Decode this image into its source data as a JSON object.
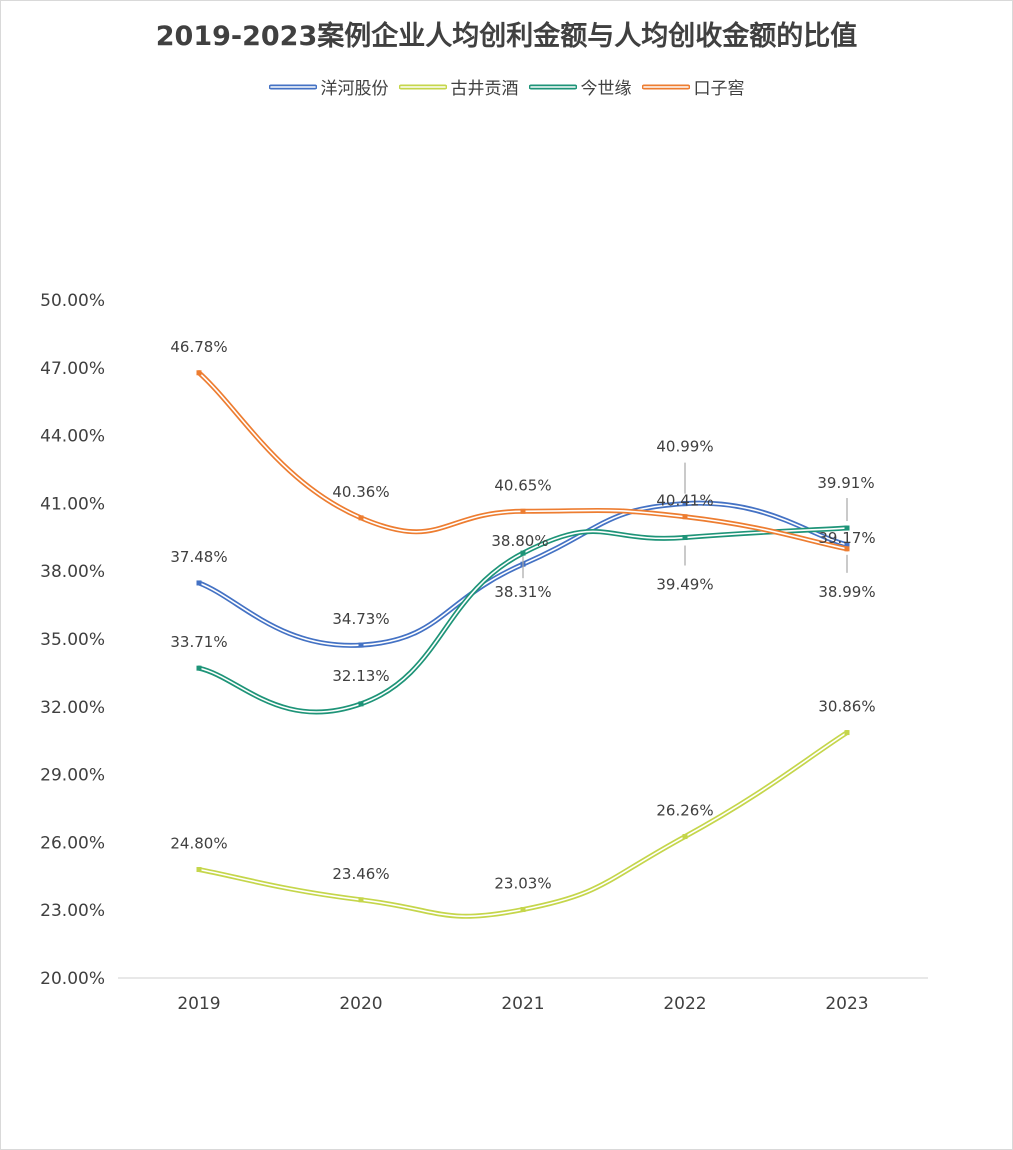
{
  "chart_data": {
    "type": "line",
    "title": "2019-2023案例企业人均创利金额与人均创收金额的比值",
    "categories": [
      "2019",
      "2020",
      "2021",
      "2022",
      "2023"
    ],
    "ylim": [
      0.2,
      0.5
    ],
    "ytick_step": 0.03,
    "ytick_labels": [
      "20.00%",
      "23.00%",
      "26.00%",
      "29.00%",
      "32.00%",
      "35.00%",
      "38.00%",
      "41.00%",
      "44.00%",
      "47.00%",
      "50.00%"
    ],
    "grid": false,
    "legend_position": "top",
    "series": [
      {
        "name": "洋河股份",
        "color": "#4472C4",
        "values": [
          0.3748,
          0.3473,
          0.3831,
          0.4099,
          0.3917
        ],
        "labels": [
          "37.48%",
          "34.73%",
          "38.31%",
          "40.99%",
          "39.17%"
        ]
      },
      {
        "name": "古井贡酒",
        "color": "#C5D64B",
        "values": [
          0.248,
          0.2346,
          0.2303,
          0.2626,
          0.3086
        ],
        "labels": [
          "24.80%",
          "23.46%",
          "23.03%",
          "26.26%",
          "30.86%"
        ]
      },
      {
        "name": "今世缘",
        "color": "#1E9478",
        "values": [
          0.3371,
          0.3213,
          0.388,
          0.3949,
          0.3991
        ],
        "labels": [
          "33.71%",
          "32.13%",
          "38.80%",
          "39.49%",
          "39.91%"
        ]
      },
      {
        "name": "口子窖",
        "color": "#ED7D31",
        "values": [
          0.4678,
          0.4036,
          0.4065,
          0.4041,
          0.3899
        ],
        "labels": [
          "46.78%",
          "40.36%",
          "40.65%",
          "40.41%",
          "38.99%"
        ]
      }
    ]
  }
}
